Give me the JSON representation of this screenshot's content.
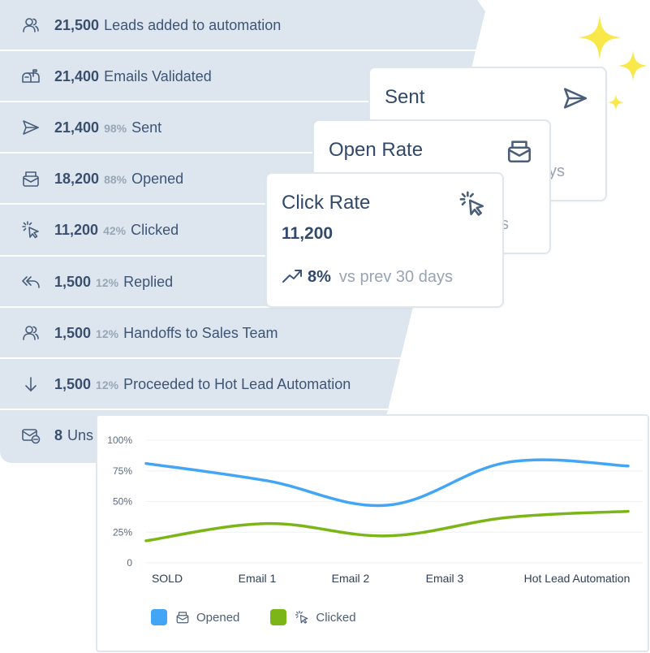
{
  "funnel": {
    "rows": [
      {
        "icon": "users-icon",
        "count": "21,500",
        "percent": "",
        "label": "Leads added to automation"
      },
      {
        "icon": "mailbox-icon",
        "count": "21,400",
        "percent": "",
        "label": "Emails Validated"
      },
      {
        "icon": "send-icon",
        "count": "21,400",
        "percent": "98%",
        "label": "Sent"
      },
      {
        "icon": "envelope-open-icon",
        "count": "18,200",
        "percent": "88%",
        "label": "Opened"
      },
      {
        "icon": "cursor-click-icon",
        "count": "11,200",
        "percent": "42%",
        "label": "Clicked"
      },
      {
        "icon": "reply-all-icon",
        "count": "1,500",
        "percent": "12%",
        "label": "Replied"
      },
      {
        "icon": "users-icon",
        "count": "1,500",
        "percent": "12%",
        "label": "Handoffs to Sales Team"
      },
      {
        "icon": "arrow-down-icon",
        "count": "1,500",
        "percent": "12%",
        "label": "Proceeded to Hot Lead Automation"
      },
      {
        "icon": "mail-minus-icon",
        "count": "8",
        "percent": "",
        "label": "Uns"
      }
    ]
  },
  "cards": {
    "sent": {
      "title": "Sent",
      "icon": "send-icon",
      "ghost": "ys"
    },
    "open_rate": {
      "title": "Open Rate",
      "icon": "envelope-open-icon",
      "ghost": "ys"
    },
    "click_rate": {
      "title": "Click Rate",
      "icon": "cursor-click-icon",
      "value": "11,200",
      "trend_percent": "8%",
      "trend_text": "vs prev 30 days"
    }
  },
  "colors": {
    "opened": "#42a5f5",
    "clicked": "#7cb518",
    "accent_star": "#f9e84a"
  },
  "chart_data": {
    "type": "line",
    "categories": [
      "SOLD",
      "Email 1",
      "Email 2",
      "Email 3",
      "Hot Lead Automation"
    ],
    "y_ticks": [
      "100%",
      "75%",
      "50%",
      "25%",
      "0"
    ],
    "ylim": [
      0,
      100
    ],
    "series": [
      {
        "name": "Opened",
        "values": [
          81,
          67,
          47,
          82,
          79
        ]
      },
      {
        "name": "Clicked",
        "values": [
          18,
          32,
          22,
          37,
          42
        ]
      }
    ],
    "legend": {
      "placement": "bottom-left"
    }
  }
}
